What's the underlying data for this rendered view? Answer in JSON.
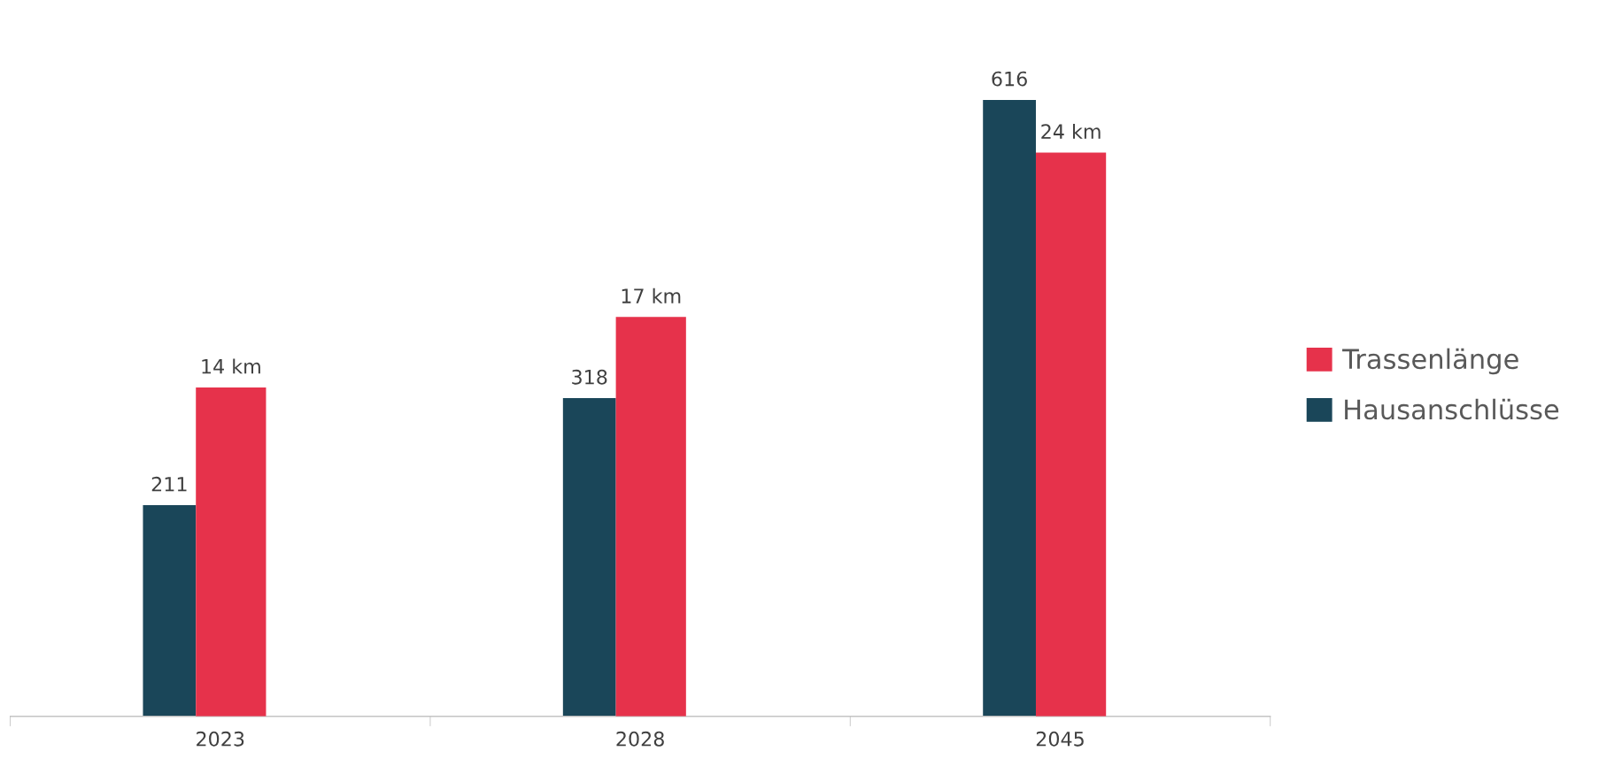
{
  "chart_data": {
    "type": "bar",
    "categories": [
      "2023",
      "2028",
      "2045"
    ],
    "series": [
      {
        "name": "Hausanschlüsse",
        "color": "#1a4659",
        "values": [
          211,
          318,
          616
        ],
        "value_labels": [
          "211",
          "318",
          "616"
        ]
      },
      {
        "name": "Trassenlänge",
        "color": "#e6324b",
        "values": [
          14,
          17,
          24
        ],
        "axis": "y2",
        "value_labels": [
          "14 km",
          "17 km",
          "24 km"
        ]
      }
    ],
    "tick_labels": "x",
    "legend": "right",
    "grid": false
  }
}
